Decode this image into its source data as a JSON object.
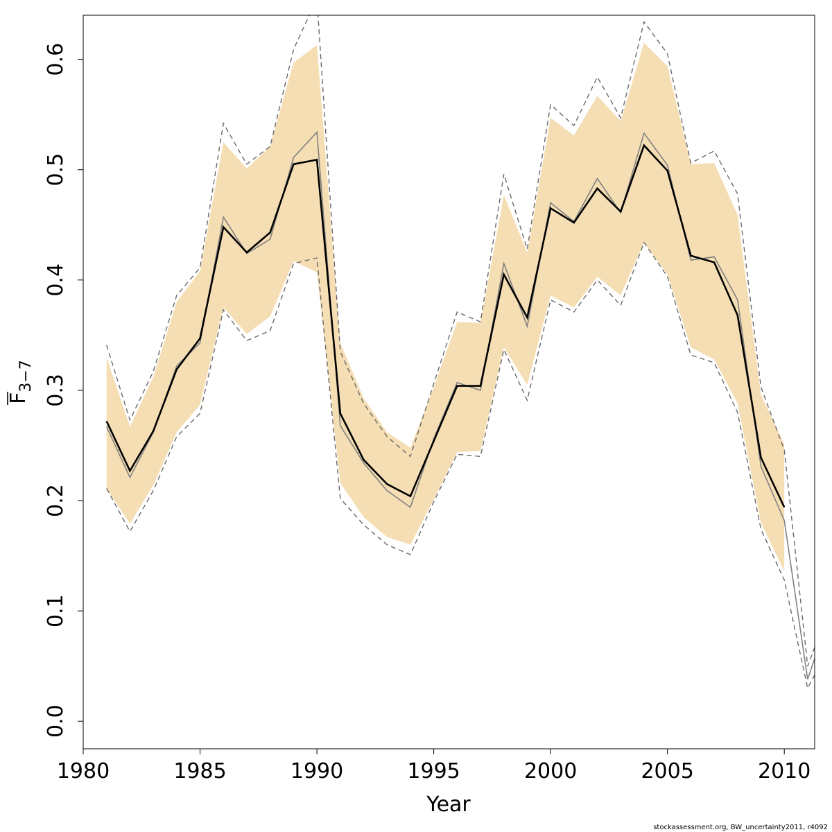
{
  "chart_data": {
    "type": "line",
    "title": "",
    "xlabel": "Year",
    "ylabel": {
      "main": "F",
      "subscript": "3−7",
      "overline": true
    },
    "xlim": [
      1980,
      2011.3
    ],
    "ylim": [
      -0.025,
      0.64
    ],
    "xticks": [
      1980,
      1985,
      1990,
      1995,
      2000,
      2005,
      2010
    ],
    "yticks": [
      0.0,
      0.1,
      0.2,
      0.3,
      0.4,
      0.5,
      0.6
    ],
    "ytick_labels": [
      "0.0",
      "0.1",
      "0.2",
      "0.3",
      "0.4",
      "0.5",
      "0.6"
    ],
    "grid": false,
    "caption": "stockassessment.org, BW_uncertainty2011, r4092",
    "colors": {
      "band": "#f5deb3",
      "estimate": "#000000",
      "median": "#808080",
      "bounds": "#696969"
    },
    "series": [
      {
        "role": "band",
        "x": [
          1981,
          1982,
          1983,
          1984,
          1985,
          1986,
          1987,
          1988,
          1989,
          1990,
          1991,
          1992,
          1993,
          1994,
          1995,
          1996,
          1997,
          1998,
          1999,
          2000,
          2001,
          2002,
          2003,
          2004,
          2005,
          2006,
          2007,
          2008,
          2009,
          2010
        ],
        "lower": [
          0.211,
          0.179,
          0.214,
          0.262,
          0.287,
          0.375,
          0.351,
          0.367,
          0.417,
          0.407,
          0.216,
          0.185,
          0.167,
          0.16,
          0.201,
          0.244,
          0.245,
          0.339,
          0.305,
          0.386,
          0.375,
          0.403,
          0.386,
          0.434,
          0.405,
          0.339,
          0.328,
          0.288,
          0.18,
          0.136
        ],
        "upper": [
          0.33,
          0.267,
          0.312,
          0.38,
          0.408,
          0.525,
          0.501,
          0.521,
          0.597,
          0.613,
          0.343,
          0.293,
          0.262,
          0.248,
          0.303,
          0.362,
          0.361,
          0.477,
          0.425,
          0.547,
          0.531,
          0.567,
          0.544,
          0.615,
          0.594,
          0.505,
          0.506,
          0.459,
          0.296,
          0.251
        ]
      },
      {
        "role": "estimate",
        "x": [
          1981,
          1982,
          1983,
          1984,
          1985,
          1986,
          1987,
          1988,
          1989,
          1990,
          1991,
          1992,
          1993,
          1994,
          1995,
          1996,
          1997,
          1998,
          1999,
          2000,
          2001,
          2002,
          2003,
          2004,
          2005,
          2006,
          2007,
          2008,
          2009,
          2010
        ],
        "y": [
          0.272,
          0.227,
          0.263,
          0.319,
          0.347,
          0.448,
          0.425,
          0.443,
          0.505,
          0.509,
          0.279,
          0.237,
          0.215,
          0.204,
          0.254,
          0.304,
          0.304,
          0.405,
          0.366,
          0.465,
          0.452,
          0.483,
          0.462,
          0.522,
          0.499,
          0.422,
          0.416,
          0.368,
          0.239,
          0.194
        ]
      },
      {
        "role": "median",
        "x": [
          1981,
          1982,
          1983,
          1984,
          1985,
          1986,
          1987,
          1988,
          1989,
          1990,
          1991,
          1992,
          1993,
          1994,
          1995,
          1996,
          1997,
          1998,
          1999,
          2000,
          2001,
          2002,
          2003,
          2004,
          2005,
          2006,
          2007,
          2008,
          2009,
          2010,
          2011,
          2011.3
        ],
        "y": [
          0.267,
          0.221,
          0.262,
          0.322,
          0.343,
          0.457,
          0.424,
          0.437,
          0.511,
          0.534,
          0.268,
          0.234,
          0.209,
          0.194,
          0.256,
          0.307,
          0.3,
          0.415,
          0.358,
          0.47,
          0.453,
          0.492,
          0.461,
          0.533,
          0.504,
          0.418,
          0.421,
          0.382,
          0.231,
          0.182,
          0.038,
          0.057
        ]
      },
      {
        "role": "upper_bound",
        "x": [
          1981,
          1982,
          1983,
          1984,
          1985,
          1986,
          1987,
          1988,
          1989,
          1990,
          1991,
          1992,
          1993,
          1994,
          1995,
          1996,
          1997,
          1998,
          1999,
          2000,
          2001,
          2002,
          2003,
          2004,
          2005,
          2006,
          2007,
          2008,
          2009,
          2010,
          2011,
          2011.3
        ],
        "y": [
          0.341,
          0.273,
          0.317,
          0.386,
          0.411,
          0.542,
          0.505,
          0.521,
          0.609,
          0.655,
          0.335,
          0.288,
          0.258,
          0.24,
          0.306,
          0.371,
          0.362,
          0.496,
          0.428,
          0.559,
          0.54,
          0.584,
          0.547,
          0.634,
          0.605,
          0.506,
          0.517,
          0.478,
          0.303,
          0.246,
          0.05,
          0.067
        ]
      },
      {
        "role": "lower_bound",
        "x": [
          1981,
          1982,
          1983,
          1984,
          1985,
          1986,
          1987,
          1988,
          1989,
          1990,
          1991,
          1992,
          1993,
          1994,
          1995,
          1996,
          1997,
          1998,
          1999,
          2000,
          2001,
          2002,
          2003,
          2004,
          2005,
          2006,
          2007,
          2008,
          2009,
          2010,
          2011,
          2011.3
        ],
        "y": [
          0.211,
          0.172,
          0.209,
          0.258,
          0.279,
          0.373,
          0.345,
          0.354,
          0.415,
          0.42,
          0.202,
          0.178,
          0.16,
          0.151,
          0.199,
          0.242,
          0.24,
          0.337,
          0.291,
          0.382,
          0.371,
          0.4,
          0.377,
          0.434,
          0.403,
          0.332,
          0.325,
          0.28,
          0.174,
          0.128,
          0.03,
          0.042
        ]
      }
    ]
  }
}
